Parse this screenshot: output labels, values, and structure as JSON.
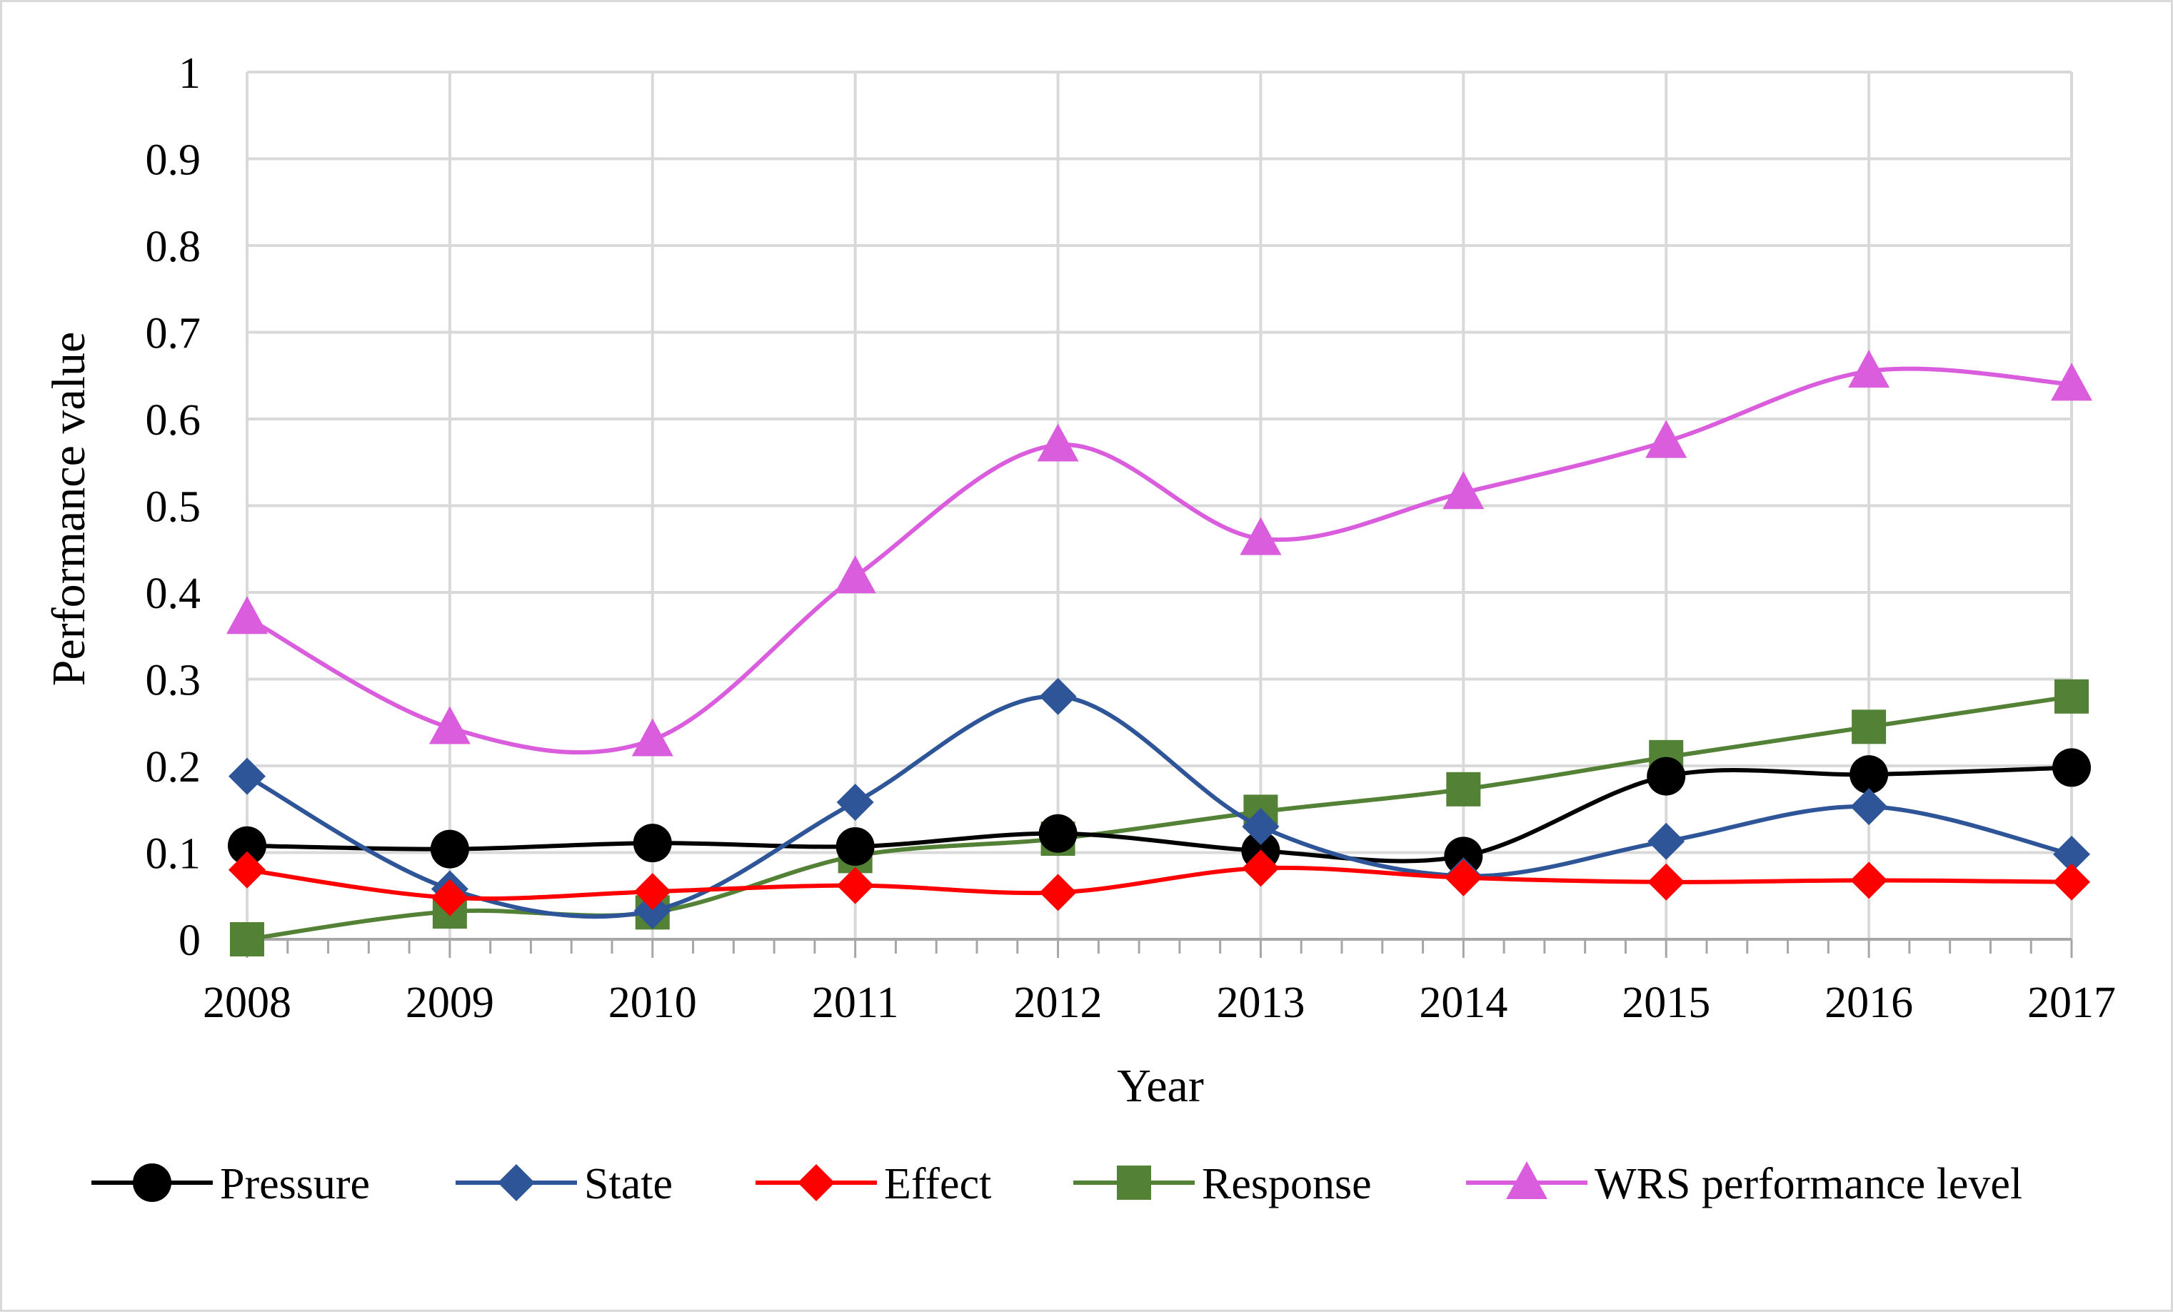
{
  "chart_data": {
    "type": "line",
    "title": "",
    "xlabel": "Year",
    "ylabel": "Performance value",
    "ylim": [
      0,
      1
    ],
    "yticks": [
      "0",
      "0.1",
      "0.2",
      "0.3",
      "0.4",
      "0.5",
      "0.6",
      "0.7",
      "0.8",
      "0.9",
      "1"
    ],
    "ytick_values": [
      0,
      0.1,
      0.2,
      0.3,
      0.4,
      0.5,
      0.6,
      0.7,
      0.8,
      0.9,
      1
    ],
    "categories": [
      "2008",
      "2009",
      "2010",
      "2011",
      "2012",
      "2013",
      "2014",
      "2015",
      "2016",
      "2017"
    ],
    "grid": true,
    "legend_position": "bottom",
    "series": [
      {
        "name": "Pressure",
        "color": "#000000",
        "marker": "circle",
        "values": [
          0.108,
          0.104,
          0.111,
          0.107,
          0.122,
          0.102,
          0.096,
          0.188,
          0.19,
          0.198
        ]
      },
      {
        "name": "State",
        "color": "#2e5597",
        "marker": "diamond",
        "values": [
          0.188,
          0.058,
          0.033,
          0.158,
          0.28,
          0.13,
          0.073,
          0.113,
          0.153,
          0.098
        ]
      },
      {
        "name": "Effect",
        "color": "#ff0000",
        "marker": "diamond",
        "values": [
          0.08,
          0.048,
          0.055,
          0.062,
          0.054,
          0.082,
          0.071,
          0.066,
          0.068,
          0.066
        ]
      },
      {
        "name": "Response",
        "color": "#538135",
        "marker": "square",
        "values": [
          0.0,
          0.032,
          0.031,
          0.096,
          0.116,
          0.147,
          0.173,
          0.21,
          0.245,
          0.28
        ]
      },
      {
        "name": "WRS performance level",
        "color": "#d95ddc",
        "marker": "triangle",
        "values": [
          0.371,
          0.244,
          0.23,
          0.418,
          0.57,
          0.462,
          0.515,
          0.574,
          0.655,
          0.64
        ]
      }
    ]
  }
}
